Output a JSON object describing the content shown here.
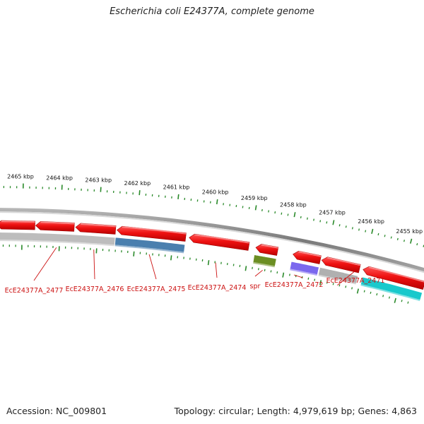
{
  "title": "Escherichia coli E24377A, complete genome",
  "footer": {
    "accession_label": "Accession: NC_009801",
    "summary": "Topology: circular; Length: 4,979,619 bp; Genes: 4,863"
  },
  "colors": {
    "backbone": "#8a8a8a",
    "forward_gene": "#ee1111",
    "tick": "#2a8a2a",
    "label": "#cc1111"
  },
  "scale_labels": [
    "2465 kbp",
    "2464 kbp",
    "2463 kbp",
    "2462 kbp",
    "2461 kbp",
    "2460 kbp",
    "2459 kbp",
    "2458 kbp",
    "2457 kbp",
    "2456 kbp",
    "2455 kbp"
  ],
  "genes": [
    {
      "label": "EcE24377A_2477",
      "strand": "-",
      "track_color": "#bdbdbd"
    },
    {
      "label": "EcE24377A_2476",
      "strand": "-",
      "track_color": "#bdbdbd"
    },
    {
      "label": "EcE24377A_2475",
      "strand": "-",
      "track_color": "#4a7fae"
    },
    {
      "label": "EcE24377A_2474",
      "strand": "-",
      "track_color": null
    },
    {
      "label": "spr",
      "strand": "-",
      "track_color": "#6b8e23"
    },
    {
      "label": "EcE24377A_2472",
      "strand": "-",
      "track_color": "#7b68ee"
    },
    {
      "label": "EcE24377A_2471",
      "strand": "-",
      "track_color": "#b0b0b0"
    },
    {
      "label": "",
      "strand": "-",
      "track_color": "#19c9cc"
    }
  ]
}
